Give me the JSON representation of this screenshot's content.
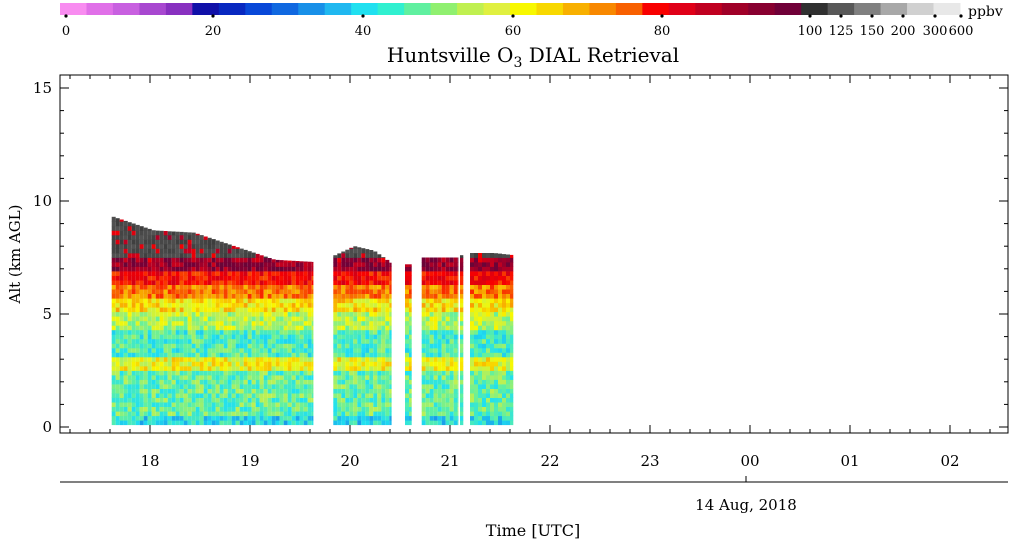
{
  "chart_data": {
    "type": "heatmap",
    "title": "Huntsville O",
    "title_sub": "3",
    "title_rest": " DIAL Retrieval",
    "xlabel": "Time [UTC]",
    "ylabel": "Alt (km AGL)",
    "date_label": "14 Aug, 2018",
    "x_ticks": [
      "18",
      "19",
      "20",
      "21",
      "22",
      "23",
      "00",
      "01",
      "02"
    ],
    "y_ticks": [
      "0",
      "5",
      "10",
      "15"
    ],
    "ylim": [
      0,
      15.5
    ],
    "colorbar": {
      "unit": "ppbv",
      "tick_labels": [
        "0",
        "20",
        "40",
        "60",
        "80",
        "100",
        "125",
        "150",
        "200",
        "300",
        "600"
      ],
      "colors": [
        "#f88cf0",
        "#e070e8",
        "#c860e0",
        "#a848d0",
        "#8830c0",
        "#1010a8",
        "#0828c0",
        "#0848d8",
        "#1068e0",
        "#1890e8",
        "#20b8f0",
        "#20e0f0",
        "#30f0d0",
        "#60f0a0",
        "#90f070",
        "#c0f050",
        "#e0f040",
        "#f8f800",
        "#f8d800",
        "#f8b000",
        "#f88800",
        "#f86000",
        "#f80000",
        "#e00018",
        "#c00020",
        "#a00028",
        "#880030",
        "#700038",
        "#303030",
        "#585858",
        "#808080",
        "#a8a8a8",
        "#d0d0d0",
        "#e8e8e8"
      ]
    },
    "segments": [
      {
        "start": "17:37",
        "end": "19:38",
        "top_km": [
          9.3,
          8.7,
          8.6,
          8.0,
          7.4,
          7.3
        ]
      },
      {
        "start": "19:50",
        "end": "20:25",
        "top_km": [
          7.6,
          8.0,
          7.8,
          7.2
        ]
      },
      {
        "start": "20:33",
        "end": "20:37",
        "top_km": [
          7.2,
          7.2
        ]
      },
      {
        "start": "20:43",
        "end": "21:05",
        "top_km": [
          7.5,
          7.5,
          7.5
        ]
      },
      {
        "start": "21:06",
        "end": "21:08",
        "top_km": [
          7.6,
          7.6
        ]
      },
      {
        "start": "21:12",
        "end": "21:38",
        "top_km": [
          7.7,
          7.7,
          7.6
        ]
      }
    ],
    "bottom_km": 0.1,
    "profile_bands_ppbv": [
      {
        "alt": [
          0.1,
          0.5
        ],
        "ppbv": 38
      },
      {
        "alt": [
          0.5,
          2.4
        ],
        "ppbv": 45
      },
      {
        "alt": [
          2.4,
          3.0
        ],
        "ppbv": 57
      },
      {
        "alt": [
          3.0,
          4.2
        ],
        "ppbv": 43
      },
      {
        "alt": [
          4.2,
          5.0
        ],
        "ppbv": 52
      },
      {
        "alt": [
          5.0,
          5.6
        ],
        "ppbv": 60
      },
      {
        "alt": [
          5.6,
          6.2
        ],
        "ppbv": 70
      },
      {
        "alt": [
          6.2,
          6.8
        ],
        "ppbv": 80
      },
      {
        "alt": [
          6.8,
          7.4
        ],
        "ppbv": 95
      },
      {
        "alt": [
          7.4,
          9.3
        ],
        "ppbv": 130
      }
    ]
  }
}
